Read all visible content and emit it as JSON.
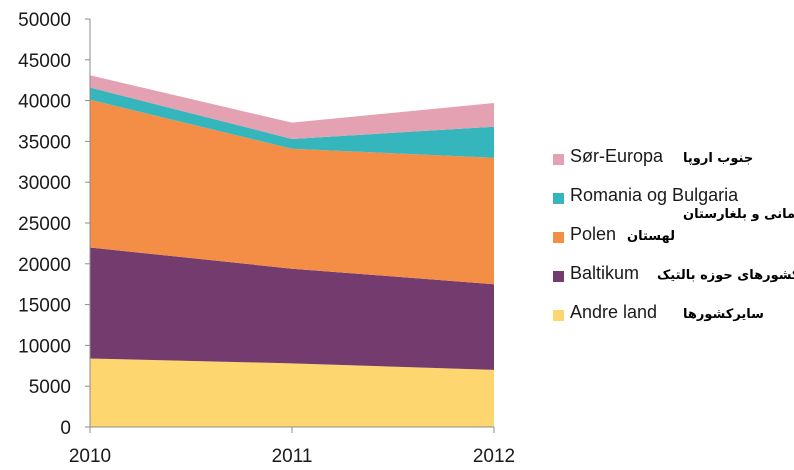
{
  "chart_data": {
    "type": "area",
    "stacked": true,
    "x": [
      "2010",
      "2011",
      "2012"
    ],
    "ylim": [
      0,
      50000
    ],
    "yticks": [
      "0",
      "5000",
      "10000",
      "15000",
      "20000",
      "25000",
      "30000",
      "35000",
      "40000",
      "45000",
      "50000"
    ],
    "grid": false,
    "legend_position": "right",
    "series": [
      {
        "name": "Andre land",
        "name_fa": "سایرکشورها",
        "color": "#fdd66f",
        "values": [
          8400,
          7800,
          7000
        ]
      },
      {
        "name": "Baltikum",
        "name_fa": "کشورهای حوزه بالتیک",
        "color": "#733b6e",
        "values": [
          13600,
          11600,
          10500
        ]
      },
      {
        "name": "Polen",
        "name_fa": "لهستان",
        "color": "#f48e46",
        "values": [
          18100,
          14700,
          15500
        ]
      },
      {
        "name": "Romania og Bulgaria",
        "name_fa": "رومانی و بلغارستان",
        "color": "#35b6bd",
        "values": [
          1500,
          1200,
          3800
        ]
      },
      {
        "name": "Sør-Europa",
        "name_fa": "جنوب اروپا",
        "color": "#e3a1b1",
        "values": [
          1500,
          2000,
          2900
        ]
      }
    ]
  }
}
